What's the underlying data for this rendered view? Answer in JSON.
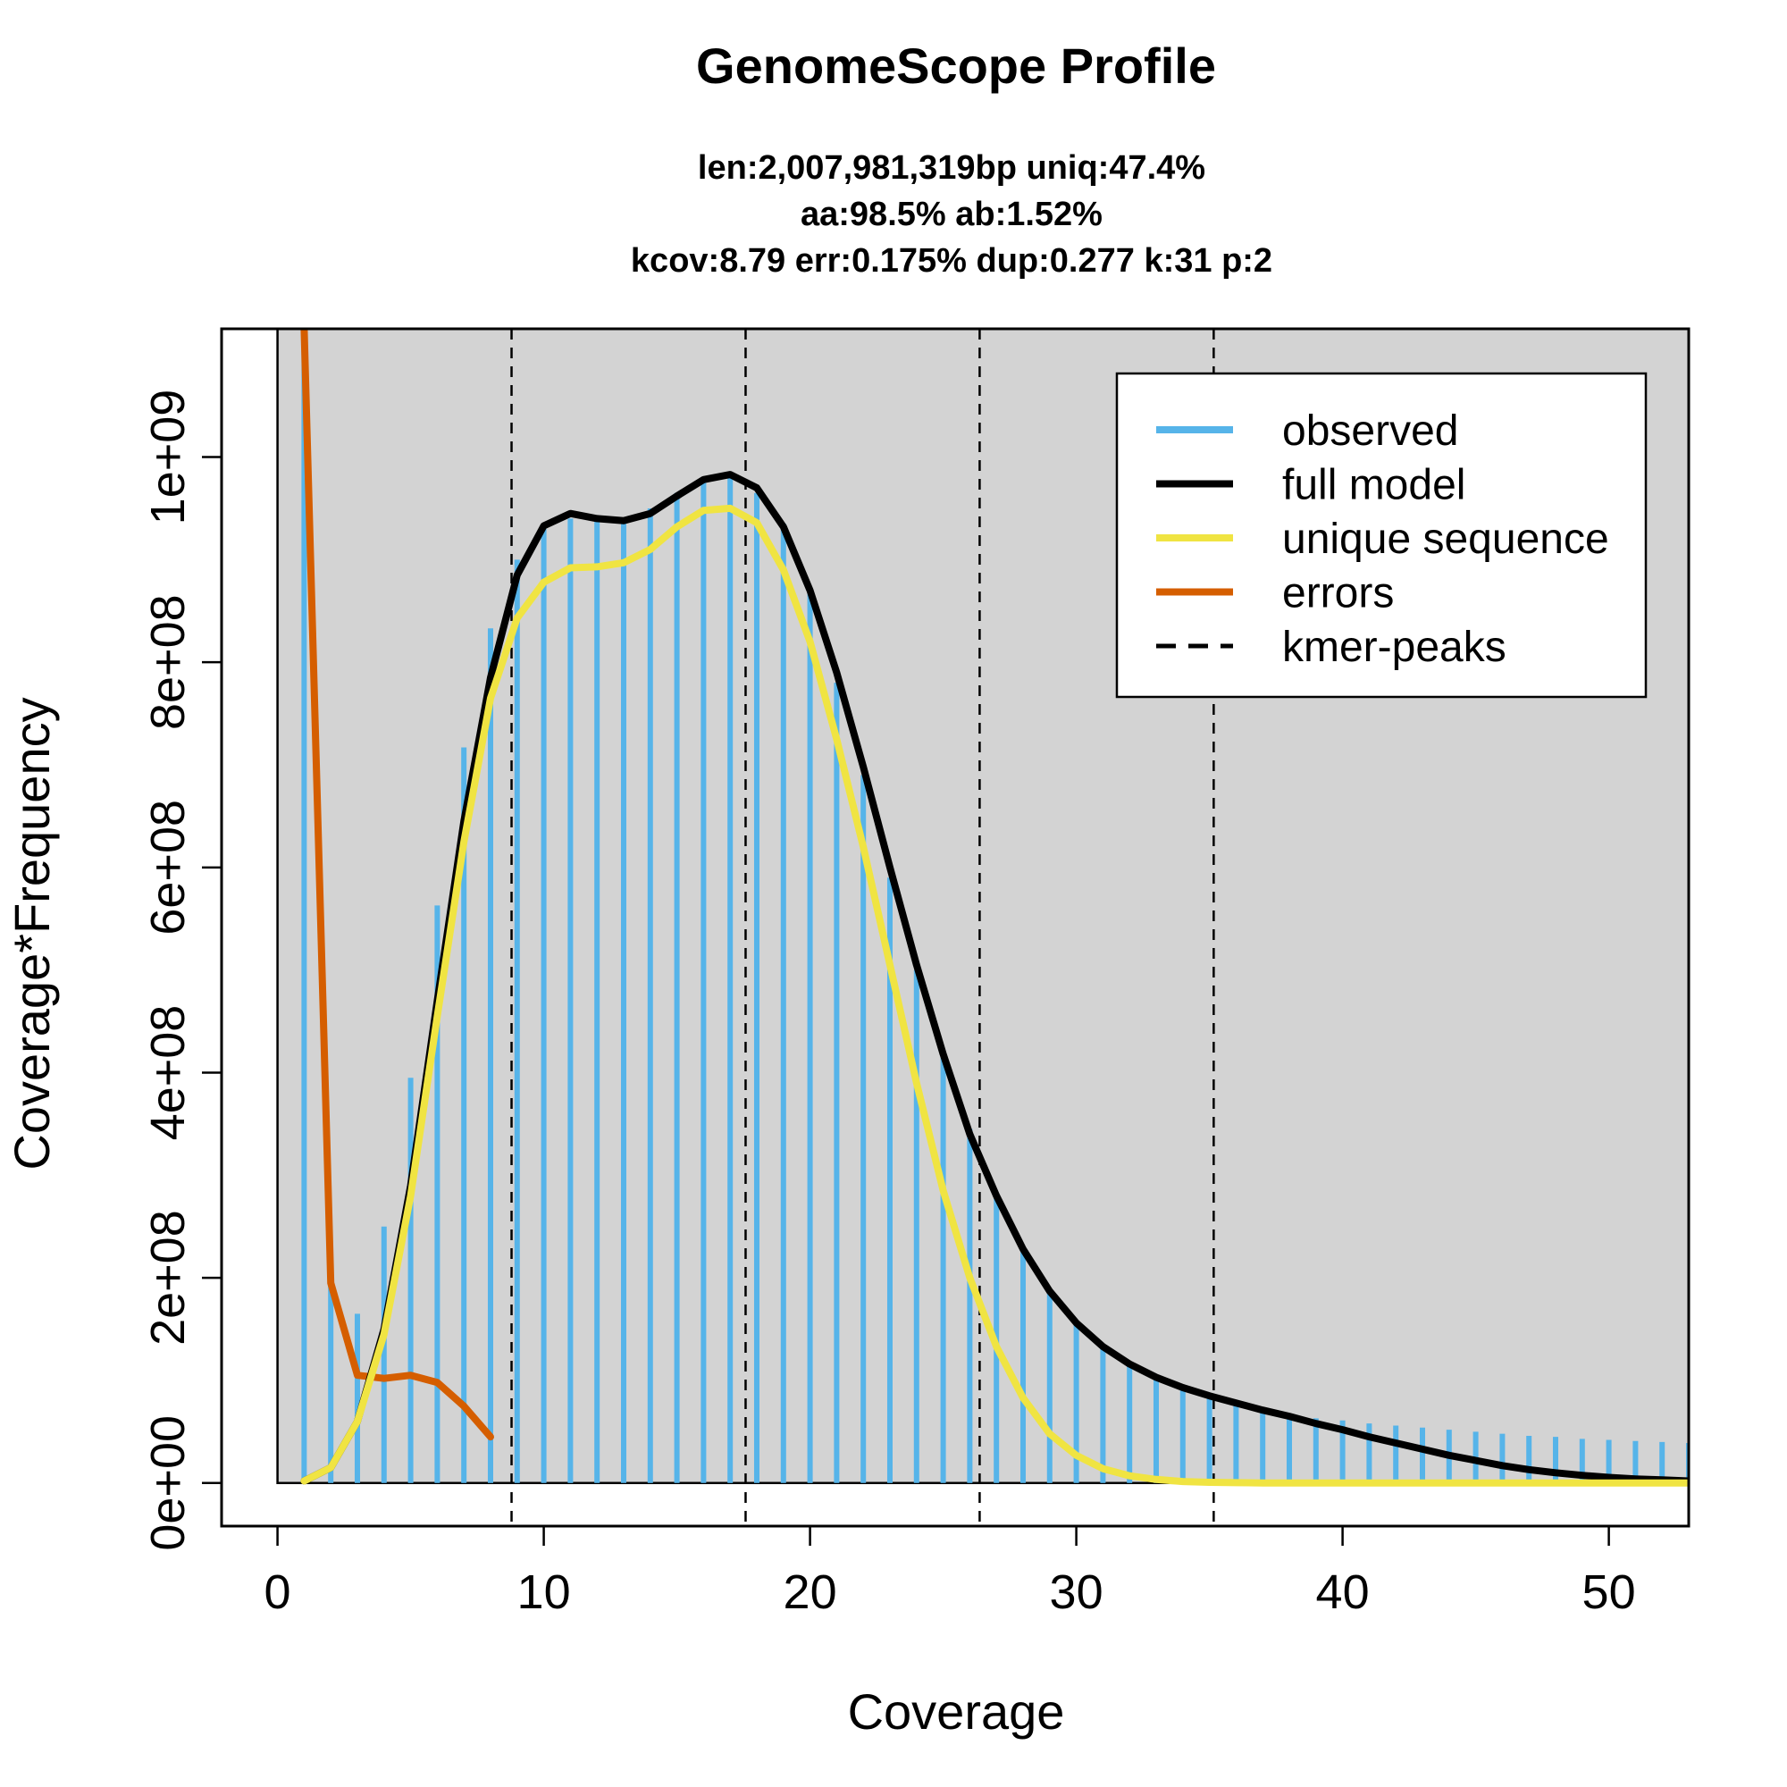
{
  "chart_data": {
    "type": "line",
    "title": "GenomeScope Profile",
    "subtitle_lines": [
      "len:2,007,981,319bp uniq:47.4%",
      "aa:98.5% ab:1.52%",
      "kcov:8.79 err:0.175%  dup:0.277  k:31 p:2"
    ],
    "xlabel": "Coverage",
    "ylabel": "Coverage*Frequency",
    "xlim": [
      -2.1,
      53
    ],
    "ylim": [
      -42000000,
      1125000000
    ],
    "x_ticks": [
      0,
      10,
      20,
      30,
      40,
      50
    ],
    "x_tick_labels": [
      "0",
      "10",
      "20",
      "30",
      "40",
      "50"
    ],
    "y_ticks": [
      0,
      200000000,
      400000000,
      600000000,
      800000000,
      1000000000
    ],
    "y_tick_labels": [
      "0e+00",
      "2e+08",
      "4e+08",
      "6e+08",
      "8e+08",
      "1e+09"
    ],
    "grey_area_xrange": [
      0,
      53
    ],
    "kmer_peaks": [
      8.79,
      17.58,
      26.37,
      35.16
    ],
    "colors": {
      "background_panel": "#d3d3d3",
      "observed": "#56b4e9",
      "full_model": "#000000",
      "unique_sequence": "#f0e442",
      "errors": "#d55e00",
      "peaks": "#000000"
    },
    "legend": {
      "placement": "top-right",
      "entries": [
        {
          "label": "observed",
          "key": "observed",
          "style": "solid"
        },
        {
          "label": "full model",
          "key": "full_model",
          "style": "solid"
        },
        {
          "label": "unique sequence",
          "key": "unique_sequence",
          "style": "solid"
        },
        {
          "label": "errors",
          "key": "errors",
          "style": "solid"
        },
        {
          "label": "kmer-peaks",
          "key": "peaks",
          "style": "dashed"
        }
      ]
    },
    "observed": {
      "x": [
        1,
        2,
        3,
        4,
        5,
        6,
        7,
        8,
        9,
        10,
        11,
        12,
        13,
        14,
        15,
        16,
        17,
        18,
        19,
        20,
        21,
        22,
        23,
        24,
        25,
        26,
        27,
        28,
        29,
        30,
        31,
        32,
        33,
        34,
        35,
        36,
        37,
        38,
        39,
        40,
        41,
        42,
        43,
        44,
        45,
        46,
        47,
        48,
        49,
        50,
        51,
        52,
        53
      ],
      "y": [
        1125000000,
        200000000,
        165000000,
        250000000,
        395000000,
        563000000,
        717000000,
        833000000,
        900000000,
        930000000,
        940000000,
        938000000,
        935000000,
        950000000,
        965000000,
        980000000,
        980000000,
        965000000,
        935000000,
        870000000,
        780000000,
        690000000,
        590000000,
        500000000,
        420000000,
        345000000,
        280000000,
        228000000,
        186000000,
        155000000,
        131000000,
        114000000,
        101000000,
        91000000,
        83000000,
        77000000,
        72000000,
        67000000,
        63000000,
        61000000,
        58000000,
        56000000,
        54000000,
        52000000,
        50000000,
        48000000,
        46000000,
        45000000,
        43000000,
        42000000,
        41000000,
        40000000,
        39000000
      ]
    },
    "series": [
      {
        "name": "full model",
        "x": [
          1,
          2,
          3,
          4,
          5,
          6,
          7,
          8,
          9,
          10,
          11,
          12,
          13,
          14,
          15,
          16,
          17,
          18,
          19,
          20,
          21,
          22,
          23,
          24,
          25,
          26,
          27,
          28,
          29,
          30,
          31,
          32,
          33,
          34,
          35,
          36,
          37,
          38,
          39,
          40,
          41,
          42,
          43,
          44,
          45,
          46,
          47,
          48,
          49,
          50,
          51,
          52,
          53
        ],
        "y": [
          2000000,
          15000000,
          60000000,
          150000000,
          290000000,
          470000000,
          645000000,
          785000000,
          885000000,
          933000000,
          945000000,
          940000000,
          938000000,
          945000000,
          962000000,
          978000000,
          983000000,
          970000000,
          932000000,
          870000000,
          790000000,
          698000000,
          600000000,
          505000000,
          418000000,
          340000000,
          280000000,
          228000000,
          187000000,
          156000000,
          133000000,
          116000000,
          103000000,
          93000000,
          85000000,
          78000000,
          71000000,
          65000000,
          58000000,
          52000000,
          45000000,
          39000000,
          33000000,
          27000000,
          22000000,
          17000000,
          13000000,
          10000000,
          7500000,
          5500000,
          4000000,
          3000000,
          2000000
        ]
      },
      {
        "name": "unique sequence",
        "x": [
          1,
          2,
          3,
          4,
          5,
          6,
          7,
          8,
          9,
          10,
          11,
          12,
          13,
          14,
          15,
          16,
          17,
          18,
          19,
          20,
          21,
          22,
          23,
          24,
          25,
          26,
          27,
          28,
          29,
          30,
          31,
          32,
          33,
          34,
          35,
          36,
          37,
          38,
          39,
          40,
          41,
          42,
          43,
          44,
          45,
          46,
          47,
          48,
          49,
          50,
          51,
          52,
          53
        ],
        "y": [
          2000000,
          15000000,
          60000000,
          145000000,
          280000000,
          455000000,
          625000000,
          765000000,
          843000000,
          878000000,
          892000000,
          893000000,
          897000000,
          910000000,
          932000000,
          948000000,
          950000000,
          936000000,
          890000000,
          820000000,
          725000000,
          620000000,
          505000000,
          390000000,
          285000000,
          200000000,
          133000000,
          83000000,
          48000000,
          27000000,
          14000000,
          7000000,
          3500000,
          1500000,
          700000,
          300000,
          100000,
          50000,
          0,
          0,
          0,
          0,
          0,
          0,
          0,
          0,
          0,
          0,
          0,
          0,
          0,
          0,
          0
        ]
      },
      {
        "name": "errors",
        "x": [
          1,
          2,
          3,
          4,
          5,
          6,
          7,
          8
        ],
        "y": [
          1125000000,
          195000000,
          105000000,
          102000000,
          105000000,
          98000000,
          75000000,
          45000000
        ]
      }
    ]
  }
}
